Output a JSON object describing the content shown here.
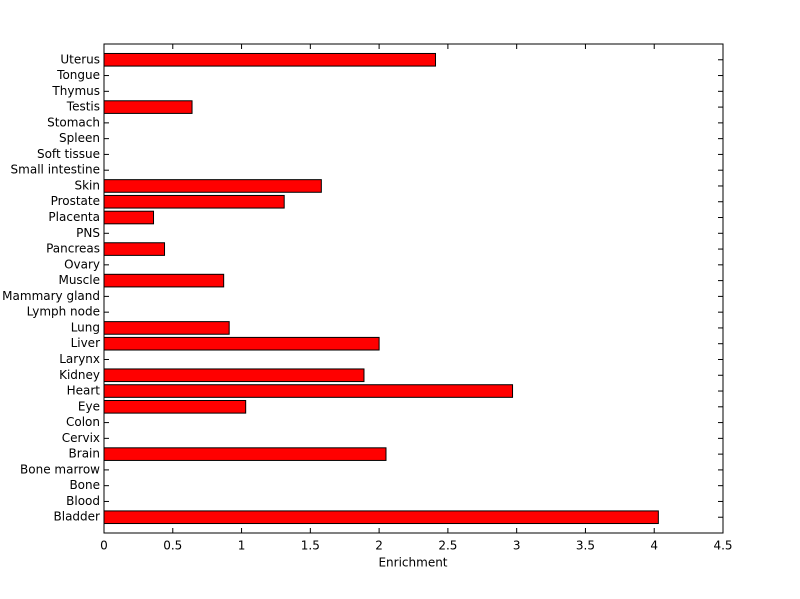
{
  "chart_data": {
    "type": "hbar",
    "xlabel": "Enrichment",
    "categories": [
      "Bladder",
      "Blood",
      "Bone",
      "Bone marrow",
      "Brain",
      "Cervix",
      "Colon",
      "Eye",
      "Heart",
      "Kidney",
      "Larynx",
      "Liver",
      "Lung",
      "Lymph node",
      "Mammary gland",
      "Muscle",
      "Ovary",
      "Pancreas",
      "PNS",
      "Placenta",
      "Prostate",
      "Skin",
      "Small intestine",
      "Soft tissue",
      "Spleen",
      "Stomach",
      "Testis",
      "Thymus",
      "Tongue",
      "Uterus"
    ],
    "values": [
      4.03,
      0,
      0,
      0,
      2.05,
      0,
      0,
      1.03,
      2.97,
      1.89,
      0,
      2.0,
      0.91,
      0,
      0,
      0.87,
      0,
      0.44,
      0,
      0.36,
      1.31,
      1.58,
      0,
      0,
      0,
      0,
      0.64,
      0,
      0,
      2.41
    ],
    "color": "#ff0000",
    "xlim": [
      0,
      4.5
    ],
    "xticks": [
      0,
      0.5,
      1,
      1.5,
      2,
      2.5,
      3,
      3.5,
      4,
      4.5
    ],
    "grid": false
  }
}
